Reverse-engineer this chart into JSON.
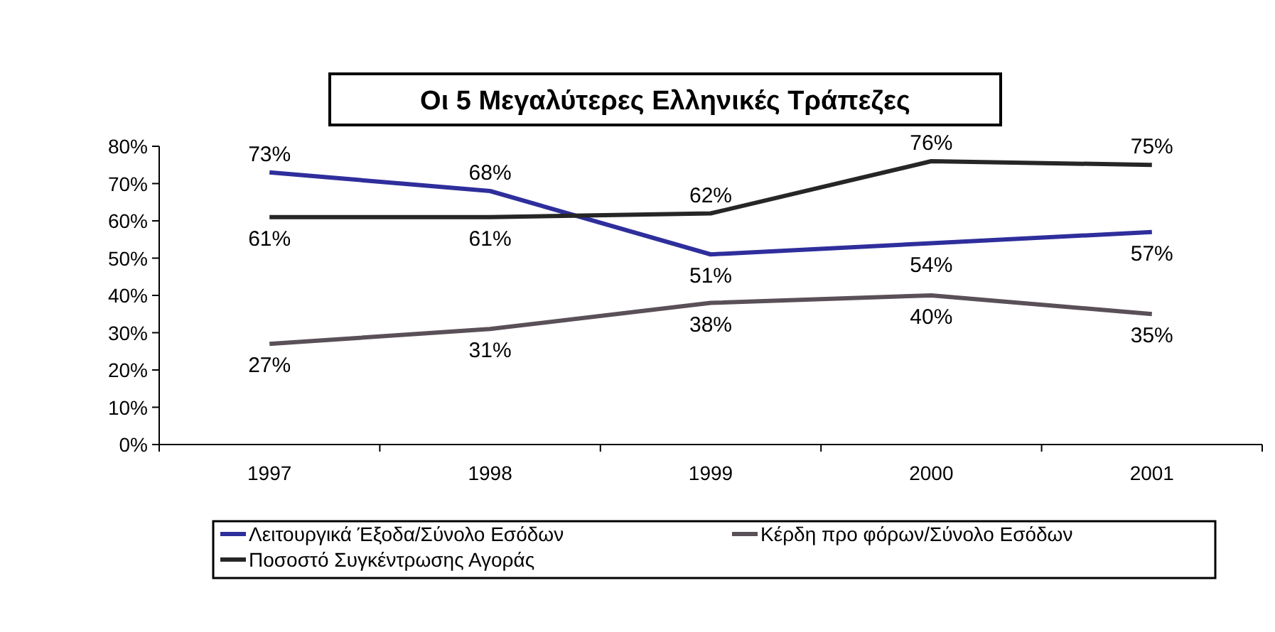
{
  "chart_data": {
    "type": "line",
    "title": "Οι 5 Μεγαλύτερες Ελληνικές Τράπεζες",
    "categories": [
      "1997",
      "1998",
      "1999",
      "2000",
      "2001"
    ],
    "series": [
      {
        "name": "Λειτουργικά Έξοδα/Σύνολο Εσόδων",
        "color": "#2e2e9c",
        "values": [
          73,
          68,
          51,
          54,
          57
        ],
        "value_labels": [
          "73%",
          "68%",
          "51%",
          "54%",
          "57%"
        ]
      },
      {
        "name": "Κέρδη προ φόρων/Σύνολο Εσόδων",
        "color": "#5a5058",
        "values": [
          27,
          31,
          38,
          40,
          35
        ],
        "value_labels": [
          "27%",
          "31%",
          "38%",
          "40%",
          "35%"
        ]
      },
      {
        "name": "Ποσοστό Συγκέντρωσης Αγοράς",
        "color": "#262626",
        "values": [
          61,
          61,
          62,
          76,
          75
        ],
        "value_labels": [
          "61%",
          "61%",
          "62%",
          "76%",
          "75%"
        ]
      }
    ],
    "ylim": [
      0,
      80
    ],
    "yticks": [
      {
        "value": 0,
        "label": "0%"
      },
      {
        "value": 10,
        "label": "10%"
      },
      {
        "value": 20,
        "label": "20%"
      },
      {
        "value": 30,
        "label": "30%"
      },
      {
        "value": 40,
        "label": "40%"
      },
      {
        "value": 50,
        "label": "50%"
      },
      {
        "value": 60,
        "label": "60%"
      },
      {
        "value": 70,
        "label": "70%"
      },
      {
        "value": 80,
        "label": "80%"
      }
    ],
    "grid": false,
    "legend": "bottom",
    "marker": "none",
    "line_style": "solid"
  }
}
